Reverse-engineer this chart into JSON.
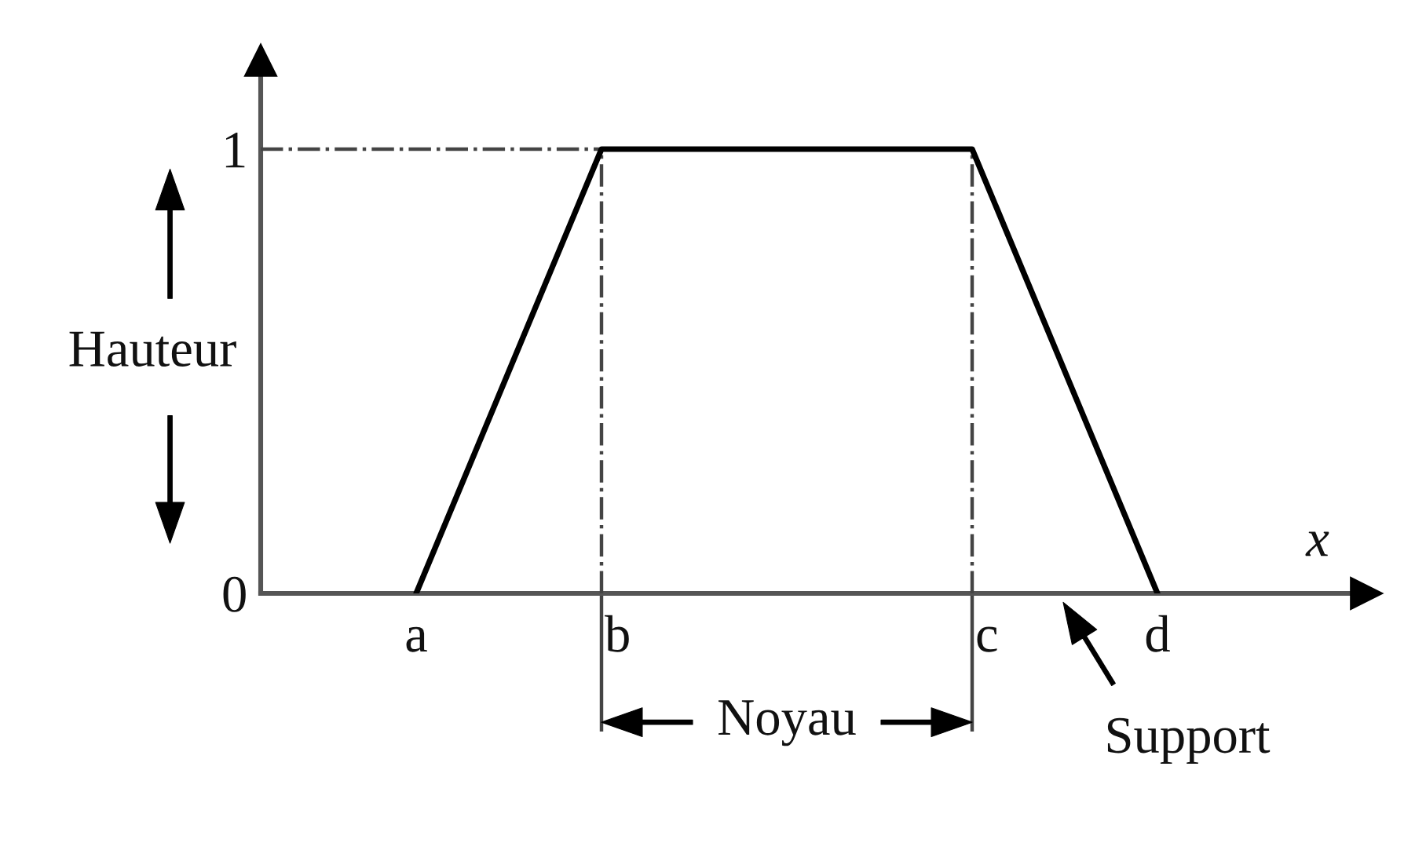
{
  "chart_data": {
    "type": "line",
    "categories": [
      "a",
      "b",
      null,
      "c",
      "d"
    ],
    "values": [
      0,
      1,
      1,
      1,
      0
    ],
    "color": "#000000",
    "ylim": [
      0,
      1.2
    ],
    "yticks": [
      0,
      1
    ],
    "xlabel": "x",
    "ref_lines": [
      {
        "axis": "y",
        "value": 1,
        "color": "#444444",
        "line_style": "dashdot"
      },
      {
        "axis": "x",
        "value": "b",
        "color": "#444444",
        "line_style": "dashdot"
      },
      {
        "axis": "x",
        "value": "c",
        "color": "#444444",
        "line_style": "dashdot"
      }
    ],
    "annotations": [
      "Hauteur",
      "Noyau",
      "Support"
    ]
  }
}
